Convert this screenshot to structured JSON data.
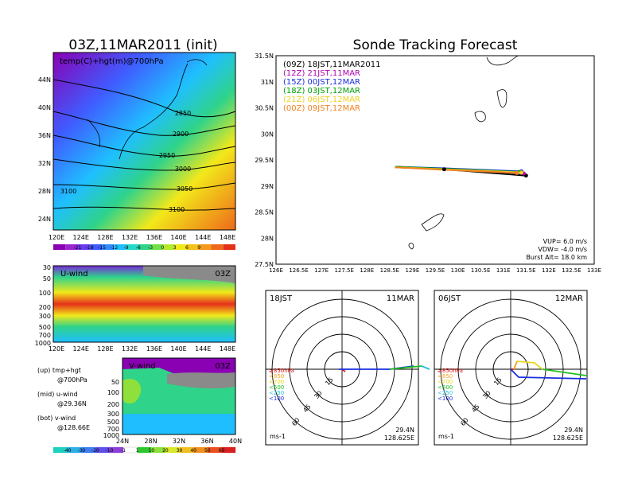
{
  "chart_data": [
    {
      "type": "heatmap",
      "title": "03Z,11MAR2011 (init)",
      "subtitle": "temp(C)+hgt(m)@700hPa",
      "x_ticks": [
        "120E",
        "124E",
        "128E",
        "132E",
        "136E",
        "140E",
        "144E",
        "148E"
      ],
      "y_ticks": [
        "24N",
        "28N",
        "32N",
        "36N",
        "40N",
        "44N"
      ],
      "contour_labels": [
        "2850",
        "2900",
        "2950",
        "3000",
        "3050",
        "3100",
        "3100"
      ],
      "colorbar_ticks": [
        "-21",
        "-18",
        "-15",
        "-12",
        "-9",
        "-6",
        "-3",
        "0",
        "3",
        "6",
        "9"
      ],
      "colorbar_colors": [
        "#8a00b3",
        "#9b26d1",
        "#6a3cf0",
        "#3f5cff",
        "#2f8bff",
        "#1fbfff",
        "#25d8c8",
        "#2fd38a",
        "#6fe04a",
        "#b4ea2a",
        "#f2e81a",
        "#f5c21a",
        "#f39a1a",
        "#ee6a1a",
        "#e5301a"
      ]
    },
    {
      "type": "heatmap",
      "title": "U-wind",
      "time_label": "03Z",
      "x_ticks": [
        "120E",
        "124E",
        "128E",
        "132E",
        "136E",
        "140E",
        "144E",
        "148E"
      ],
      "y_ticks": [
        "30",
        "50",
        "100",
        "200",
        "300",
        "500",
        "700",
        "1000"
      ]
    },
    {
      "type": "heatmap",
      "title": "V-wind",
      "time_label": "03Z",
      "x_ticks": [
        "24N",
        "28N",
        "32N",
        "36N",
        "40N"
      ],
      "y_ticks": [
        "50",
        "100",
        "200",
        "300",
        "500",
        "700",
        "1000"
      ]
    },
    {
      "type": "line",
      "title": "Sonde Tracking Forecast",
      "x_ticks": [
        "126E",
        "126.5E",
        "127E",
        "127.5E",
        "128E",
        "128.5E",
        "129E",
        "129.5E",
        "130E",
        "130.5E",
        "131E",
        "131.5E",
        "132E",
        "132.5E",
        "133E"
      ],
      "y_ticks": [
        "27.5N",
        "28N",
        "28.5N",
        "29N",
        "29.5N",
        "30N",
        "30.5N",
        "31N",
        "31.5N"
      ],
      "xlim": [
        126,
        133
      ],
      "ylim": [
        27.5,
        31.5
      ],
      "series": [
        {
          "name": "(09Z)  18JST,11MAR2011",
          "color": "#000000",
          "points": [
            [
              128.62,
              29.36
            ],
            [
              129.7,
              29.32
            ],
            [
              131.5,
              29.2
            ]
          ]
        },
        {
          "name": "(12Z)  21JST,11MAR",
          "color": "#b000b0",
          "points": [
            [
              128.62,
              29.36
            ],
            [
              129.7,
              29.33
            ],
            [
              131.45,
              29.24
            ]
          ]
        },
        {
          "name": "(15Z)  00JST,12MAR",
          "color": "#1a2ee0",
          "points": [
            [
              128.62,
              29.37
            ],
            [
              129.7,
              29.34
            ],
            [
              131.4,
              29.28
            ]
          ]
        },
        {
          "name": "(18Z)  03JST,12MAR",
          "color": "#00a000",
          "points": [
            [
              128.62,
              29.37
            ],
            [
              129.7,
              29.33
            ],
            [
              131.35,
              29.27
            ]
          ]
        },
        {
          "name": "(21Z)  06JST,12MAR",
          "color": "#f0d020",
          "points": [
            [
              128.62,
              29.36
            ],
            [
              129.7,
              29.32
            ],
            [
              131.4,
              29.26
            ]
          ]
        },
        {
          "name": "(00Z)  09JST,12MAR",
          "color": "#f08020",
          "points": [
            [
              128.62,
              29.36
            ],
            [
              129.7,
              29.31
            ],
            [
              131.3,
              29.25
            ]
          ]
        }
      ],
      "annotations": [
        "VUP=  6.0  m/s",
        "VDW= -4.0  m/s",
        "Burst Alt=  18.0  km"
      ]
    }
  ],
  "hodographs": [
    {
      "left": "18JST",
      "right": "11MAR",
      "coords": [
        "29.4N",
        "128.625E"
      ],
      "ring_labels": [
        "15",
        "30",
        "45",
        "60"
      ],
      "unit": "ms-1"
    },
    {
      "left": "06JST",
      "right": "12MAR",
      "coords": [
        "29.4N",
        "128.625E"
      ],
      "ring_labels": [
        "15",
        "30",
        "45",
        "60"
      ],
      "unit": "ms-1"
    }
  ],
  "hodo_legend": [
    {
      "label": "≥850hPa",
      "color": "#e01010"
    },
    {
      "label": "<850",
      "color": "#f0a020"
    },
    {
      "label": "<700",
      "color": "#e8d820"
    },
    {
      "label": "<500",
      "color": "#20c020"
    },
    {
      "label": "<250",
      "color": "#20c0e0"
    },
    {
      "label": "<100",
      "color": "#1a2ee0"
    }
  ],
  "notes": [
    {
      "top": "(up) tmp+hgt",
      "bottom": "@700hPa"
    },
    {
      "top": "(mid) u-wind",
      "bottom": "@29.36N"
    },
    {
      "top": "(bot) v-wind",
      "bottom": "@128.66E"
    }
  ],
  "bottom_colorbar": {
    "ticks": [
      "-40",
      "-30",
      "-20",
      "-10",
      "-1",
      "1",
      "10",
      "20",
      "30",
      "40",
      "50",
      "60"
    ],
    "colors": [
      "#1fd0c0",
      "#2faee8",
      "#3f7cf0",
      "#5e50e8",
      "#8a3fd8",
      "#ffffff",
      "#2ec82e",
      "#8fe03a",
      "#d8e82a",
      "#f0c020",
      "#f09020",
      "#e85020",
      "#d82020"
    ]
  }
}
